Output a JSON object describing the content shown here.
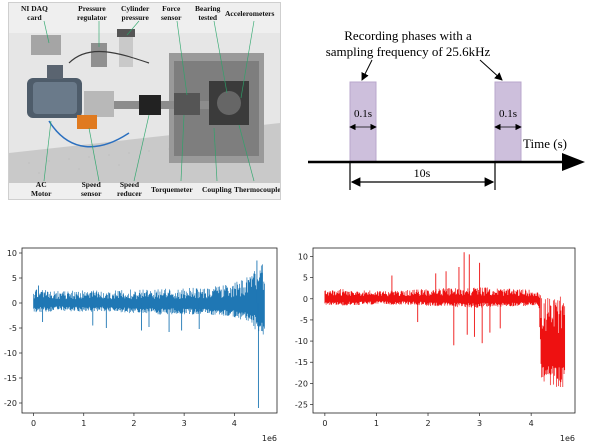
{
  "photo": {
    "top_labels": [
      {
        "id": "nidaq",
        "text": "NI DAQ\ncard"
      },
      {
        "id": "pressure",
        "text": "Pressure\nregulator"
      },
      {
        "id": "cylinder",
        "text": "Cylinder\npressure"
      },
      {
        "id": "force",
        "text": "Force\nsensor"
      },
      {
        "id": "bearing",
        "text": "Bearing\ntested"
      },
      {
        "id": "accel",
        "text": "Accelerometers"
      }
    ],
    "bottom_labels": [
      {
        "id": "motor",
        "text": "AC\nMotor"
      },
      {
        "id": "speedsensor",
        "text": "Speed\nsensor"
      },
      {
        "id": "reducer",
        "text": "Speed\nreducer"
      },
      {
        "id": "torque",
        "text": "Torquemeter"
      },
      {
        "id": "coupling",
        "text": "Coupling"
      },
      {
        "id": "thermo",
        "text": "Thermocouple"
      }
    ]
  },
  "timeline": {
    "title_line1": "Recording phases with a",
    "title_line2": "sampling frequency of 25.6kHz",
    "phase_label_left": "0.1s",
    "phase_label_right": "0.1s",
    "interval_label": "10s",
    "axis_label": "Time (s)",
    "colors": {
      "phase_fill": "#cdbfdc",
      "phase_stroke": "#b9a7cc"
    }
  },
  "chart_data": [
    {
      "type": "line",
      "color": "#1f77b4",
      "x_tick_labels": [
        "0",
        "1",
        "2",
        "3",
        "4"
      ],
      "x_ticks": [
        0,
        1000000,
        2000000,
        3000000,
        4000000
      ],
      "x_offset_label": "1e6",
      "xlim": [
        -230000,
        4850000
      ],
      "y_tick_labels": [
        "10",
        "5",
        "0",
        "-5",
        "-10",
        "-15",
        "-20"
      ],
      "y_ticks": [
        10,
        5,
        0,
        -5,
        -10,
        -15,
        -20
      ],
      "ylim": [
        -22,
        11
      ],
      "envelope": {
        "x": [
          0,
          500000,
          1000000,
          1500000,
          2000000,
          2500000,
          3000000,
          3500000,
          4000000,
          4300000,
          4450000,
          4600000
        ],
        "upper": [
          2.8,
          2.4,
          2.6,
          2.4,
          2.8,
          2.8,
          3.0,
          3.2,
          4.0,
          5.5,
          7.5,
          8.0
        ],
        "lower": [
          -2.8,
          -2.3,
          -2.6,
          -2.4,
          -3.0,
          -3.2,
          -3.2,
          -3.4,
          -4.2,
          -6.0,
          -8.0,
          -9.0
        ]
      },
      "spikes": [
        {
          "x": 100000,
          "y": 3.5
        },
        {
          "x": 180000,
          "y": -3.8
        },
        {
          "x": 1180000,
          "y": -4.5
        },
        {
          "x": 1450000,
          "y": -5.0
        },
        {
          "x": 2150000,
          "y": -5.5
        },
        {
          "x": 2300000,
          "y": -4.8
        },
        {
          "x": 2700000,
          "y": -5.8
        },
        {
          "x": 2950000,
          "y": -5.5
        },
        {
          "x": 3300000,
          "y": -5.2
        },
        {
          "x": 4450000,
          "y": 8.5
        },
        {
          "x": 4480000,
          "y": -21.0
        }
      ]
    },
    {
      "type": "line",
      "color": "#ee1111",
      "x_tick_labels": [
        "0",
        "1",
        "2",
        "3",
        "4"
      ],
      "x_ticks": [
        0,
        1000000,
        2000000,
        3000000,
        4000000
      ],
      "x_offset_label": "1e6",
      "xlim": [
        -230000,
        4850000
      ],
      "y_tick_labels": [
        "10",
        "5",
        "0",
        "-5",
        "-10",
        "-15",
        "-20",
        "-25"
      ],
      "y_ticks": [
        10,
        5,
        0,
        -5,
        -10,
        -15,
        -20,
        -25
      ],
      "ylim": [
        -27,
        12
      ],
      "envelope": {
        "x": [
          0,
          500000,
          1000000,
          1500000,
          2000000,
          2500000,
          3000000,
          3500000,
          4000000,
          4150000,
          4200000,
          4650000
        ],
        "upper": [
          2.5,
          2.2,
          2.0,
          2.0,
          2.4,
          2.6,
          2.8,
          2.4,
          2.2,
          2.0,
          0.5,
          0.5
        ],
        "lower": [
          -2.5,
          -2.2,
          -2.0,
          -2.0,
          -2.4,
          -2.8,
          -3.0,
          -2.6,
          -2.4,
          -2.4,
          -24.0,
          -25.0
        ]
      },
      "spikes": [
        {
          "x": 2150000,
          "y": 6.0
        },
        {
          "x": 2350000,
          "y": 6.5
        },
        {
          "x": 2500000,
          "y": -11.0
        },
        {
          "x": 2600000,
          "y": 7.5
        },
        {
          "x": 2700000,
          "y": 11.0
        },
        {
          "x": 2760000,
          "y": -8.5
        },
        {
          "x": 2800000,
          "y": 10.5
        },
        {
          "x": 2900000,
          "y": -9.0
        },
        {
          "x": 3000000,
          "y": 8.5
        },
        {
          "x": 3050000,
          "y": -10.5
        },
        {
          "x": 3200000,
          "y": -8.0
        },
        {
          "x": 3400000,
          "y": -7.0
        },
        {
          "x": 1300000,
          "y": 5.5
        },
        {
          "x": 1800000,
          "y": -5.5
        }
      ]
    }
  ]
}
